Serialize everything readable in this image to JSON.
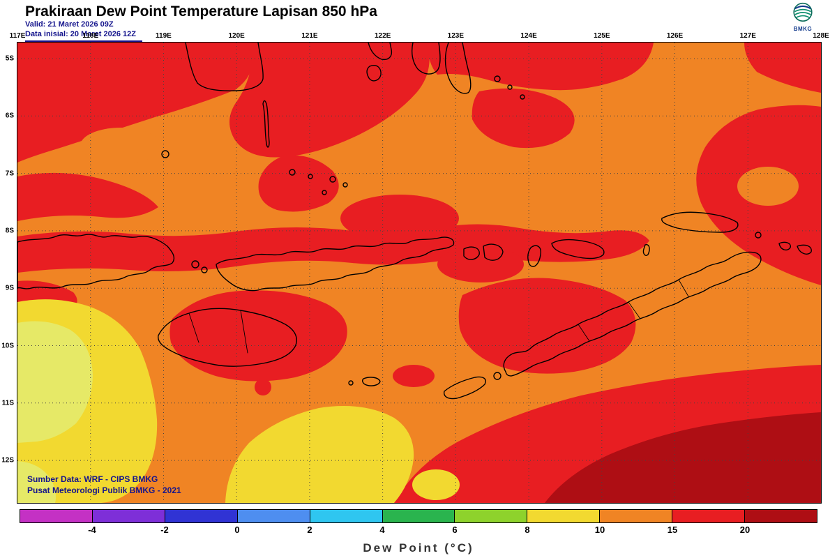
{
  "header": {
    "title": "Prakiraan Dew Point Temperature Lapisan 850 hPa",
    "valid_line": "Valid: 21 Maret 2026 09Z",
    "init_line": "Data inisial: 20 Maret 2026 12Z",
    "logo_text": "BMKG"
  },
  "map": {
    "lon_labels": [
      "117E",
      "118E",
      "119E",
      "120E",
      "121E",
      "122E",
      "123E",
      "124E",
      "125E",
      "126E",
      "127E",
      "128E"
    ],
    "lat_labels": [
      "5S",
      "6S",
      "7S",
      "8S",
      "9S",
      "10S",
      "11S",
      "12S"
    ],
    "credit_line1": "Sumber Data: WRF - CIPS BMKG",
    "credit_line2": "Pusat Meteorologi Publik BMKG - 2021"
  },
  "legend": {
    "caption": "Dew Point (°C)",
    "tick_labels": [
      "-4",
      "-2",
      "0",
      "2",
      "4",
      "6",
      "8",
      "10",
      "15",
      "20"
    ],
    "segment_colors": [
      "#c431c4",
      "#7e2fd8",
      "#3033d4",
      "#4e8ef0",
      "#2fc6f0",
      "#2ab44e",
      "#8ed22c",
      "#f2d930",
      "#f08424",
      "#e81e22",
      "#ae0e14"
    ]
  },
  "colors": {
    "orange": "#f08424",
    "red": "#e81e22",
    "dark_red": "#ae0e14",
    "yellow": "#f2d930",
    "pale_yellow": "#e6e967",
    "land_outline": "#000000",
    "credit_text": "#15158c"
  }
}
